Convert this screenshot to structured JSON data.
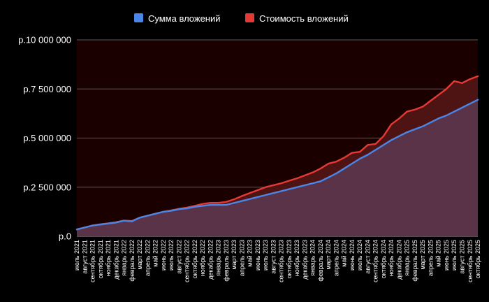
{
  "chart_data": {
    "type": "area",
    "title": "",
    "xlabel": "",
    "ylabel": "",
    "ylim": [
      0,
      10000000
    ],
    "y_ticks": [
      {
        "value": 0,
        "label": "р.0"
      },
      {
        "value": 2500000,
        "label": "р.2 500 000"
      },
      {
        "value": 5000000,
        "label": "р.5 000 000"
      },
      {
        "value": 7500000,
        "label": "р.7 500 000"
      },
      {
        "value": 10000000,
        "label": "р.10 000 000"
      }
    ],
    "grid": true,
    "legend_position": "top-center",
    "categories": [
      "июль 2021",
      "август 2021",
      "сентябрь 2021",
      "октябрь 2021",
      "ноябрь 2021",
      "декабрь 2021",
      "январь 2022",
      "февраль 2022",
      "март 2022",
      "апрель 2022",
      "май 2022",
      "июнь 2022",
      "июль 2022",
      "август 2022",
      "сентябрь 2022",
      "октябрь 2022",
      "ноябрь 2022",
      "декабрь 2022",
      "январь 2023",
      "февраль 2023",
      "март 2023",
      "апрель 2023",
      "май 2023",
      "июнь 2023",
      "июль 2023",
      "август 2023",
      "сентябрь 2023",
      "октябрь 2023",
      "ноябрь 2023",
      "декабрь 2023",
      "январь 2024",
      "февраль 2024",
      "март 2024",
      "апрель 2024",
      "май 2024",
      "июнь 2024",
      "июль 2024",
      "август 2024",
      "сентябрь 2024",
      "октябрь 2024",
      "ноябрь 2024",
      "декабрь 2024",
      "январь 2025",
      "февраль 2025",
      "март 2025",
      "апрель 2025",
      "май 2025",
      "июнь 2025",
      "июль 2025",
      "август 2025",
      "сентябрь 2025",
      "октябрь 2025"
    ],
    "series": [
      {
        "name": "Сумма вложений",
        "color": "#4a86e8",
        "values": [
          350000,
          450000,
          550000,
          600000,
          650000,
          700000,
          800000,
          760000,
          950000,
          1050000,
          1150000,
          1250000,
          1300000,
          1380000,
          1420000,
          1500000,
          1550000,
          1600000,
          1600000,
          1600000,
          1700000,
          1800000,
          1900000,
          2000000,
          2100000,
          2200000,
          2300000,
          2400000,
          2500000,
          2600000,
          2700000,
          2800000,
          3000000,
          3200000,
          3450000,
          3700000,
          3950000,
          4150000,
          4400000,
          4650000,
          4900000,
          5100000,
          5300000,
          5450000,
          5600000,
          5800000,
          6000000,
          6150000,
          6350000,
          6550000,
          6750000,
          6950000
        ]
      },
      {
        "name": "Стоимость вложений",
        "color": "#e53935",
        "values": [
          350000,
          450000,
          550000,
          610000,
          660000,
          720000,
          800000,
          780000,
          950000,
          1050000,
          1150000,
          1250000,
          1320000,
          1400000,
          1460000,
          1550000,
          1650000,
          1700000,
          1700000,
          1750000,
          1880000,
          2050000,
          2200000,
          2350000,
          2500000,
          2600000,
          2700000,
          2830000,
          2950000,
          3100000,
          3250000,
          3450000,
          3700000,
          3800000,
          4000000,
          4250000,
          4300000,
          4650000,
          4700000,
          5100000,
          5700000,
          6000000,
          6350000,
          6450000,
          6600000,
          6900000,
          7200000,
          7500000,
          7900000,
          7800000,
          8000000,
          8150000
        ]
      }
    ]
  }
}
